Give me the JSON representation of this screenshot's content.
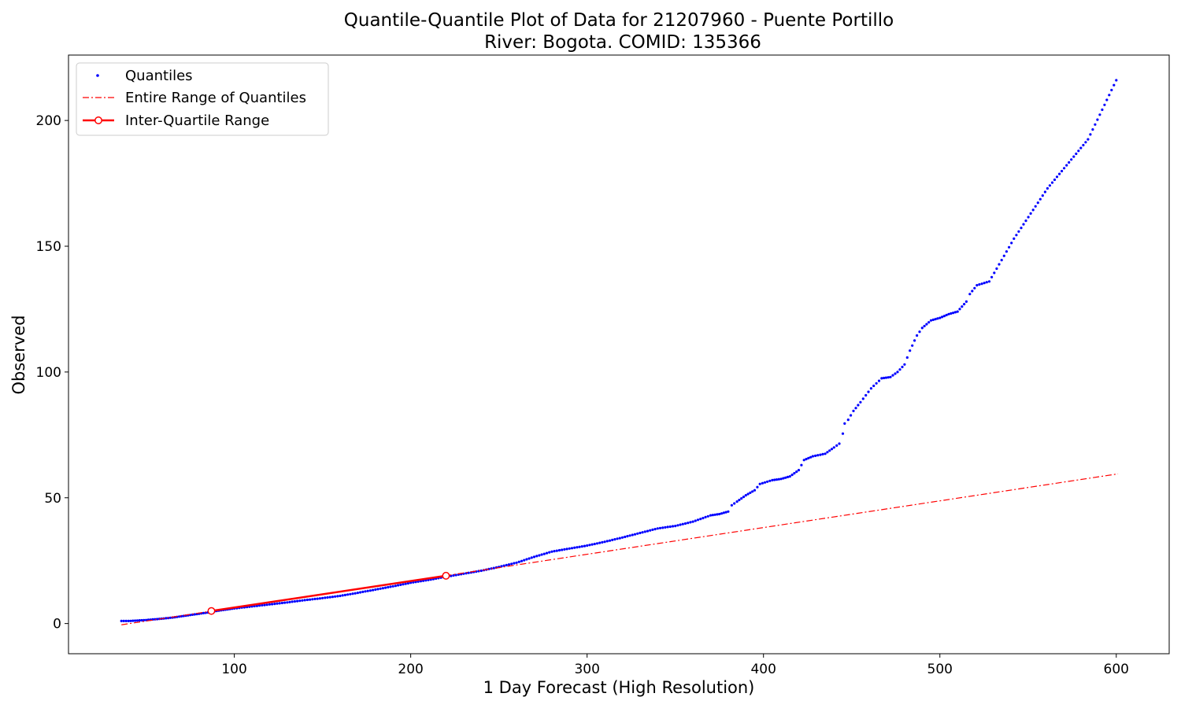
{
  "chart_data": {
    "type": "scatter",
    "title": [
      "Quantile-Quantile Plot of Data for 21207960 - Puente Portillo",
      "River: Bogota. COMID: 135366"
    ],
    "xlabel": "1 Day Forecast (High Resolution)",
    "ylabel": "Observed",
    "xlim": [
      6,
      630
    ],
    "ylim": [
      -12,
      226
    ],
    "xticks": [
      100,
      200,
      300,
      400,
      500,
      600
    ],
    "yticks": [
      0,
      50,
      100,
      150,
      200
    ],
    "grid": false,
    "legend_position": "upper-left",
    "series": [
      {
        "name": "Quantiles",
        "kind": "points",
        "color": "#0000ff",
        "points": [
          [
            36,
            1.0
          ],
          [
            40,
            1.0
          ],
          [
            45,
            1.2
          ],
          [
            50,
            1.4
          ],
          [
            55,
            1.7
          ],
          [
            60,
            2.0
          ],
          [
            65,
            2.4
          ],
          [
            70,
            2.9
          ],
          [
            75,
            3.4
          ],
          [
            80,
            3.9
          ],
          [
            85,
            4.4
          ],
          [
            90,
            5.0
          ],
          [
            95,
            5.5
          ],
          [
            100,
            6.0
          ],
          [
            110,
            6.8
          ],
          [
            120,
            7.6
          ],
          [
            130,
            8.4
          ],
          [
            140,
            9.3
          ],
          [
            150,
            10.1
          ],
          [
            160,
            11.0
          ],
          [
            170,
            12.2
          ],
          [
            180,
            13.5
          ],
          [
            190,
            14.8
          ],
          [
            200,
            16.2
          ],
          [
            210,
            17.3
          ],
          [
            220,
            18.6
          ],
          [
            230,
            19.8
          ],
          [
            240,
            21.0
          ],
          [
            250,
            22.5
          ],
          [
            260,
            24.2
          ],
          [
            270,
            26.5
          ],
          [
            280,
            28.6
          ],
          [
            290,
            29.8
          ],
          [
            300,
            31.0
          ],
          [
            310,
            32.5
          ],
          [
            320,
            34.2
          ],
          [
            330,
            36.0
          ],
          [
            340,
            37.8
          ],
          [
            350,
            38.8
          ],
          [
            360,
            40.5
          ],
          [
            370,
            43.0
          ],
          [
            375,
            43.5
          ],
          [
            380,
            44.5
          ],
          [
            382,
            47.0
          ],
          [
            385,
            48.5
          ],
          [
            390,
            51.0
          ],
          [
            395,
            53.0
          ],
          [
            398,
            55.5
          ],
          [
            405,
            57.0
          ],
          [
            410,
            57.5
          ],
          [
            415,
            58.5
          ],
          [
            420,
            61.0
          ],
          [
            423,
            65.0
          ],
          [
            428,
            66.5
          ],
          [
            435,
            67.5
          ],
          [
            440,
            70.0
          ],
          [
            443,
            71.5
          ],
          [
            445,
            75.5
          ],
          [
            446,
            79.5
          ],
          [
            448,
            81.0
          ],
          [
            451,
            84.5
          ],
          [
            455,
            88.0
          ],
          [
            461,
            93.5
          ],
          [
            467,
            97.5
          ],
          [
            472,
            98.0
          ],
          [
            476,
            100.0
          ],
          [
            480,
            103.0
          ],
          [
            483,
            108.5
          ],
          [
            487,
            114.5
          ],
          [
            490,
            117.5
          ],
          [
            495,
            120.5
          ],
          [
            500,
            121.5
          ],
          [
            505,
            123.0
          ],
          [
            510,
            124.0
          ],
          [
            515,
            128.0
          ],
          [
            517,
            131.0
          ],
          [
            521,
            134.5
          ],
          [
            528,
            136.0
          ],
          [
            542,
            153.0
          ],
          [
            561,
            173.0
          ],
          [
            584,
            192.5
          ],
          [
            600,
            216.0
          ]
        ]
      },
      {
        "name": "Entire Range of Quantiles",
        "kind": "dashdot-line",
        "color": "#ff0000",
        "points": [
          [
            36,
            -0.5
          ],
          [
            601,
            59.5
          ]
        ]
      },
      {
        "name": "Inter-Quartile Range",
        "kind": "line-with-markers",
        "color": "#ff0000",
        "points": [
          [
            87,
            5.0
          ],
          [
            220,
            19.0
          ]
        ]
      }
    ]
  }
}
